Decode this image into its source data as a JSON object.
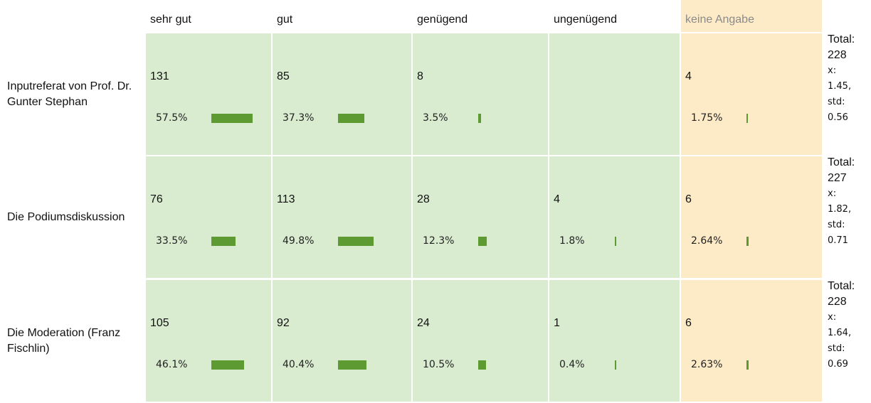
{
  "header": {
    "columns": [
      "sehr gut",
      "gut",
      "genügend",
      "ungenügend",
      "keine Angabe"
    ]
  },
  "rows": [
    {
      "label": "Inputreferat von Prof. Dr. Gunter Stephan",
      "cells": [
        {
          "count": 131,
          "percent": {
            "value": 57.5,
            "label": "57.5%"
          }
        },
        {
          "count": 85,
          "percent": {
            "value": 37.3,
            "label": "37.3%"
          }
        },
        {
          "count": 8,
          "percent": {
            "value": 3.5,
            "label": "3.5%"
          }
        },
        null,
        {
          "count": 4,
          "percent": {
            "value": 1.75,
            "label": "1.75%"
          }
        }
      ],
      "total_label": "Total:",
      "total": 228,
      "mean_label": "x:",
      "mean": "1.45,",
      "std_label": "std:",
      "std": 0.56
    },
    {
      "label": "Die Podiumsdiskussion",
      "cells": [
        {
          "count": 76,
          "percent": {
            "value": 33.5,
            "label": "33.5%"
          }
        },
        {
          "count": 113,
          "percent": {
            "value": 49.8,
            "label": "49.8%"
          }
        },
        {
          "count": 28,
          "percent": {
            "value": 12.3,
            "label": "12.3%"
          }
        },
        {
          "count": 4,
          "percent": {
            "value": 1.8,
            "label": "1.8%"
          }
        },
        {
          "count": 6,
          "percent": {
            "value": 2.64,
            "label": "2.64%"
          }
        }
      ],
      "total_label": "Total:",
      "total": 227,
      "mean_label": "x:",
      "mean": "1.82,",
      "std_label": "std:",
      "std": 0.71
    },
    {
      "label": "Die Moderation (Franz Fischlin)",
      "cells": [
        {
          "count": 105,
          "percent": {
            "value": 46.1,
            "label": "46.1%"
          }
        },
        {
          "count": 92,
          "percent": {
            "value": 40.4,
            "label": "40.4%"
          }
        },
        {
          "count": 24,
          "percent": {
            "value": 10.5,
            "label": "10.5%"
          }
        },
        {
          "count": 1,
          "percent": {
            "value": 0.4,
            "label": "0.4%"
          }
        },
        {
          "count": 6,
          "percent": {
            "value": 2.63,
            "label": "2.63%"
          }
        }
      ],
      "total_label": "Total:",
      "total": 228,
      "mean_label": "x:",
      "mean": "1.64,",
      "std_label": "std:",
      "std": 0.69
    }
  ]
}
